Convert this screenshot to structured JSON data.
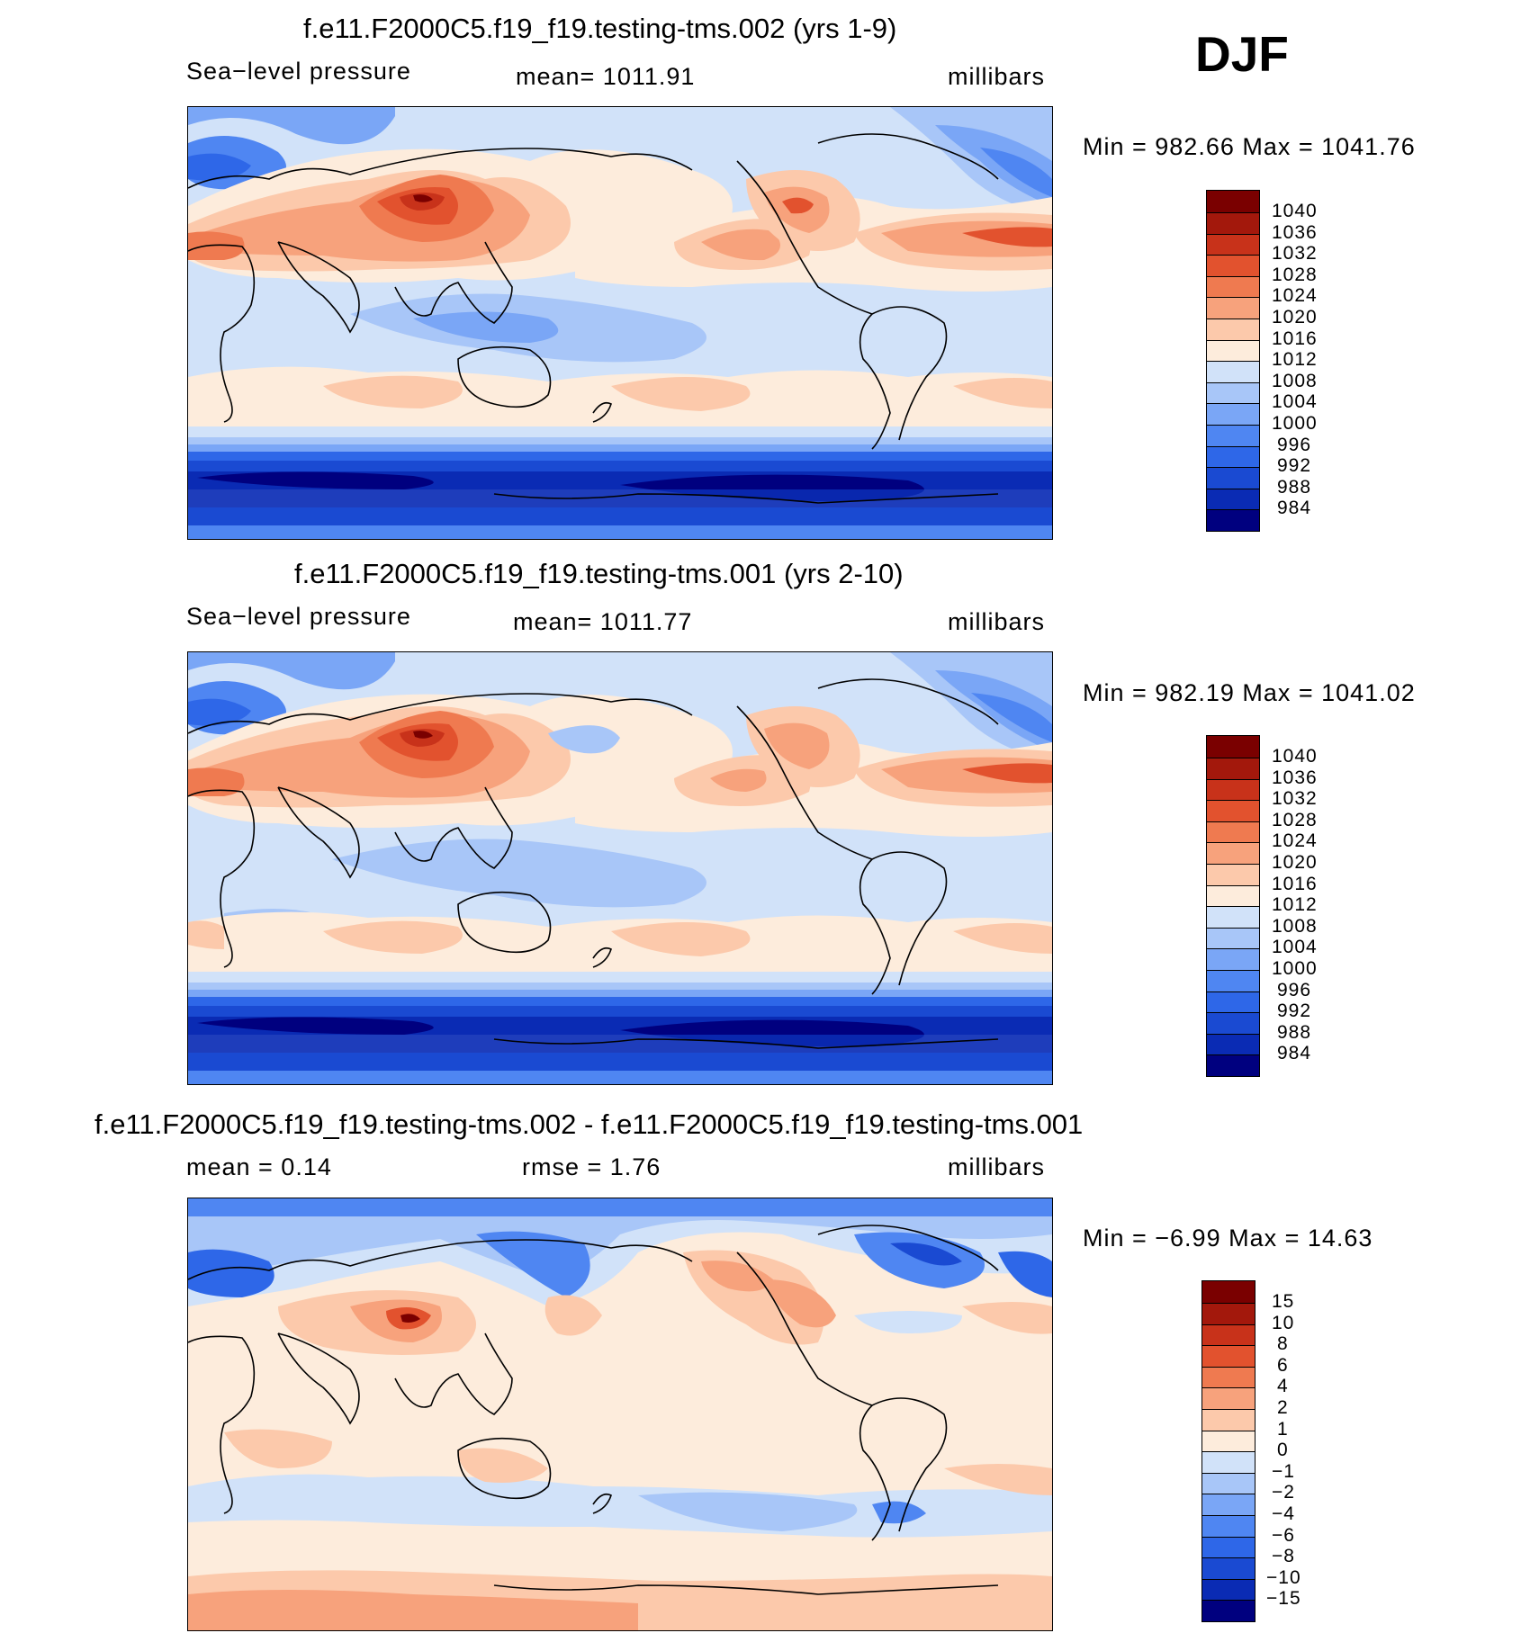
{
  "season": "DJF",
  "colors": {
    "contour_scale": [
      "#00007f",
      "#0a2bb4",
      "#1a4ad2",
      "#2e67e8",
      "#4f86f2",
      "#7aa6f6",
      "#a8c6f8",
      "#d1e2f9",
      "#fdecdc",
      "#fcc9ab",
      "#f7a27c",
      "#ef7a50",
      "#e2522e",
      "#c8321a",
      "#a3180c",
      "#7a0000"
    ]
  },
  "panels": [
    {
      "title": "f.e11.F2000C5.f19_f19.testing-tms.002 (yrs 1-9)",
      "left": "Sea−level pressure",
      "middle": "mean=  1011.91",
      "right": "millibars",
      "minmax": "Min  =  982.66  Max  =  1041.76",
      "colorbar_labels": [
        "1040",
        "1036",
        "1032",
        "1028",
        "1024",
        "1020",
        "1016",
        "1012",
        "1008",
        "1004",
        "1000",
        "996",
        "992",
        "988",
        "984"
      ]
    },
    {
      "title": "f.e11.F2000C5.f19_f19.testing-tms.001 (yrs 2-10)",
      "left": "Sea−level pressure",
      "middle": "mean=  1011.77",
      "right": "millibars",
      "minmax": "Min  =  982.19  Max  =  1041.02",
      "colorbar_labels": [
        "1040",
        "1036",
        "1032",
        "1028",
        "1024",
        "1020",
        "1016",
        "1012",
        "1008",
        "1004",
        "1000",
        "996",
        "992",
        "988",
        "984"
      ]
    },
    {
      "title": "f.e11.F2000C5.f19_f19.testing-tms.002 - f.e11.F2000C5.f19_f19.testing-tms.001",
      "left": "mean  =     0.14",
      "middle": "rmse  =     1.76",
      "right": "millibars",
      "minmax": "Min  =    −6.99  Max  =     14.63",
      "colorbar_labels": [
        "15",
        "10",
        "8",
        "6",
        "4",
        "2",
        "1",
        "0",
        "−1",
        "−2",
        "−4",
        "−6",
        "−8",
        "−10",
        "−15"
      ]
    }
  ]
}
